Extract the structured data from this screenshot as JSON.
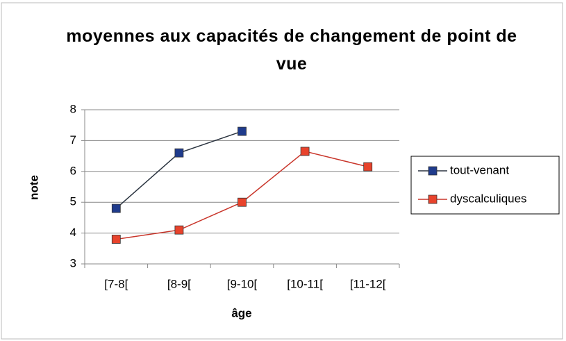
{
  "chart_data": {
    "type": "line",
    "title": "moyennes aux capacités de changement de point de vue",
    "x_label": "âge",
    "y_label": "note",
    "categories": [
      "[7-8[",
      "[8-9[",
      "[9-10[",
      "[10-11[",
      "[11-12["
    ],
    "series": [
      {
        "name": "tout-venant",
        "color": "#1f3b8c",
        "line_color": "#2b3440",
        "values": [
          4.8,
          6.6,
          7.3,
          null,
          null
        ]
      },
      {
        "name": "dyscalculiques",
        "color": "#e8432c",
        "line_color": "#c9362b",
        "values": [
          3.8,
          4.1,
          5.0,
          6.65,
          6.15
        ]
      }
    ],
    "ylim": [
      3,
      8
    ],
    "yticks": [
      3,
      4,
      5,
      6,
      7,
      8
    ],
    "grid": true,
    "legend": "right"
  }
}
